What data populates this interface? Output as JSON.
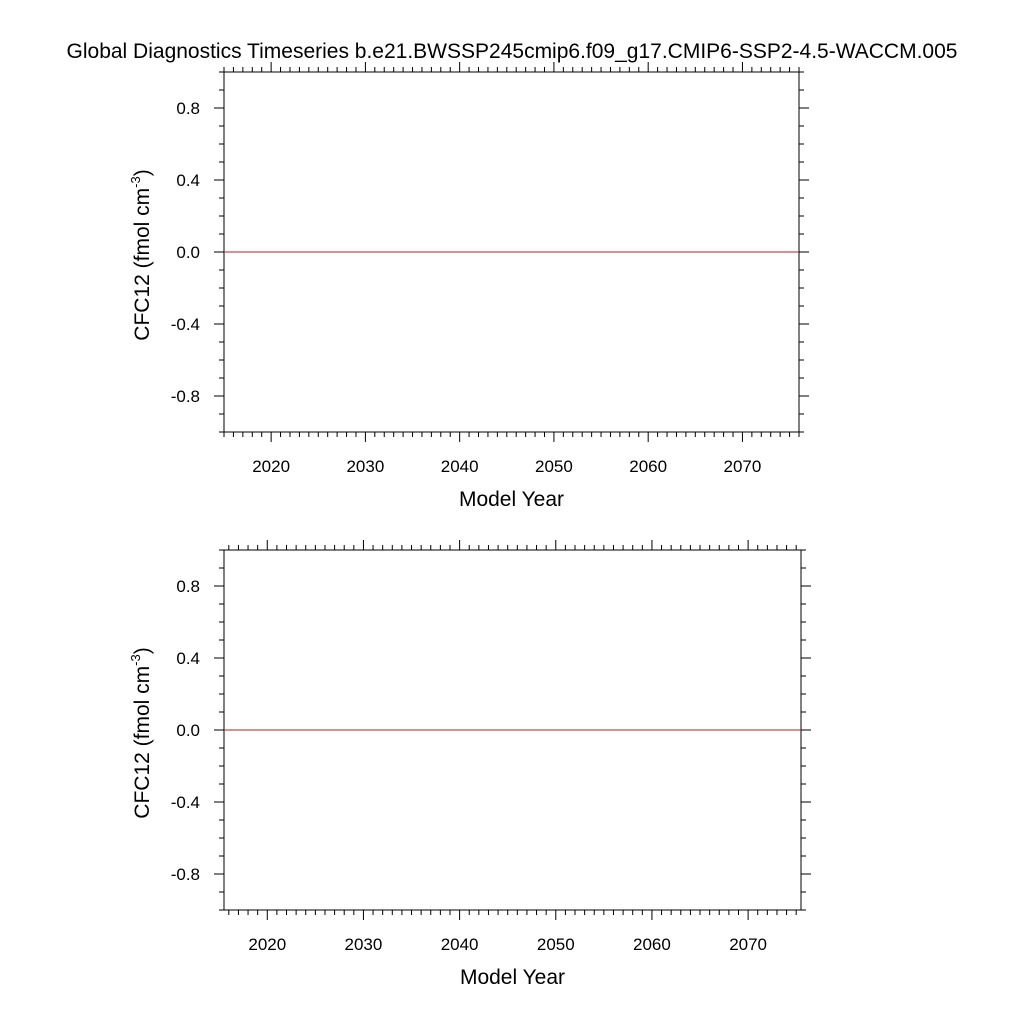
{
  "title": "Global Diagnostics Timeseries b.e21.BWSSP245cmip6.f09_g17.CMIP6-SSP2-4.5-WACCM.005",
  "chart_data": [
    {
      "type": "line",
      "xlabel": "Model Year",
      "ylabel_main": "CFC12 (fmol cm",
      "ylabel_sup": "-3",
      "ylabel_close": ")",
      "xlim": [
        2015,
        2076
      ],
      "ylim": [
        -1.0,
        1.0
      ],
      "x_ticks": [
        2020,
        2030,
        2040,
        2050,
        2060,
        2070
      ],
      "x_tick_labels": [
        "2020",
        "2030",
        "2040",
        "2050",
        "2060",
        "2070"
      ],
      "y_ticks": [
        0.8,
        0.4,
        0.0,
        -0.4,
        -0.8
      ],
      "y_tick_labels": [
        "0.8",
        "0.4",
        "0.0",
        "-0.4",
        "-0.8"
      ],
      "reference_line_y": 0.0,
      "series": [
        {
          "color": "#b22222",
          "x": [
            2015,
            2076
          ],
          "y": [
            0.0,
            0.0
          ]
        }
      ]
    },
    {
      "type": "line",
      "xlabel": "Model Year",
      "ylabel_main": "CFC12 (fmol cm",
      "ylabel_sup": "-3",
      "ylabel_close": ")",
      "xlim": [
        2015.5,
        2075.5
      ],
      "ylim": [
        -1.0,
        1.0
      ],
      "x_ticks": [
        2020,
        2030,
        2040,
        2050,
        2060,
        2070
      ],
      "x_tick_labels": [
        "2020",
        "2030",
        "2040",
        "2050",
        "2060",
        "2070"
      ],
      "y_ticks": [
        0.8,
        0.4,
        0.0,
        -0.4,
        -0.8
      ],
      "y_tick_labels": [
        "0.8",
        "0.4",
        "0.0",
        "-0.4",
        "-0.8"
      ],
      "reference_line_y": 0.0,
      "series": [
        {
          "color": "#b22222",
          "x": [
            2015.5,
            2075.5
          ],
          "y": [
            0.0,
            0.0
          ]
        }
      ]
    }
  ]
}
